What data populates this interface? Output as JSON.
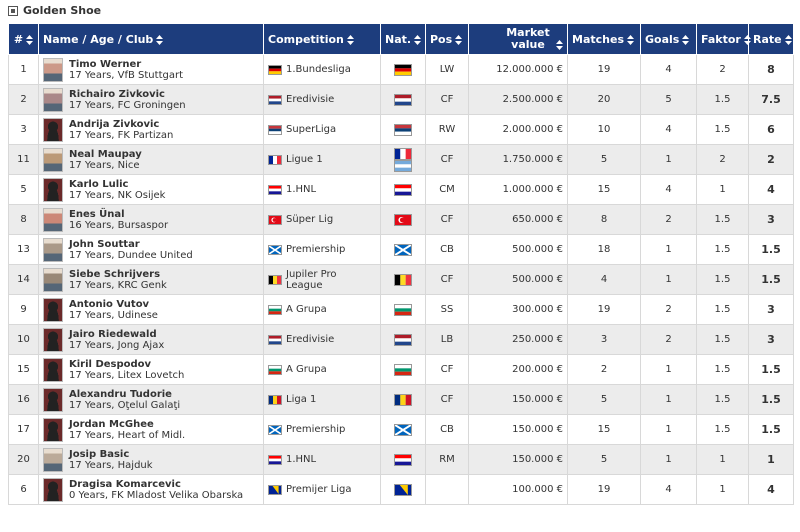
{
  "title": "Golden Shoe",
  "table": {
    "headers": [
      "#",
      "Name / Age / Club",
      "Competition",
      "Nat.",
      "Pos",
      "Market value",
      "Matches",
      "Goals",
      "Faktor",
      "Rate"
    ],
    "rows": [
      {
        "number": "1",
        "name": "Timo Werner",
        "details": "17 Years, VfB Stuttgart",
        "competition": "1.Bundesliga",
        "pos": "LW",
        "market_value": "12.000.000 €",
        "matches": "19",
        "goals": "4",
        "faktor": "2",
        "rate": "8"
      },
      {
        "number": "2",
        "name": "Richairo Zivkovic",
        "details": "17 Years, FC Groningen",
        "competition": "Eredivisie",
        "pos": "CF",
        "market_value": "2.500.000 €",
        "matches": "20",
        "goals": "5",
        "faktor": "1.5",
        "rate": "7.5"
      },
      {
        "number": "3",
        "name": "Andrija Zivkovic",
        "details": "17 Years, FK Partizan",
        "competition": "SuperLiga",
        "pos": "RW",
        "market_value": "2.000.000 €",
        "matches": "10",
        "goals": "4",
        "faktor": "1.5",
        "rate": "6"
      },
      {
        "number": "11",
        "name": "Neal Maupay",
        "details": "17 Years, Nice",
        "competition": "Ligue 1",
        "pos": "CF",
        "market_value": "1.750.000 €",
        "matches": "5",
        "goals": "1",
        "faktor": "2",
        "rate": "2"
      },
      {
        "number": "5",
        "name": "Karlo Lulic",
        "details": "17 Years, NK Osijek",
        "competition": "1.HNL",
        "pos": "CM",
        "market_value": "1.000.000 €",
        "matches": "15",
        "goals": "4",
        "faktor": "1",
        "rate": "4"
      },
      {
        "number": "8",
        "name": "Enes Ünal",
        "details": "16 Years, Bursaspor",
        "competition": "Süper Lig",
        "pos": "CF",
        "market_value": "650.000 €",
        "matches": "8",
        "goals": "2",
        "faktor": "1.5",
        "rate": "3"
      },
      {
        "number": "13",
        "name": "John Souttar",
        "details": "17 Years, Dundee United",
        "competition": "Premiership",
        "pos": "CB",
        "market_value": "500.000 €",
        "matches": "18",
        "goals": "1",
        "faktor": "1.5",
        "rate": "1.5"
      },
      {
        "number": "14",
        "name": "Siebe Schrijvers",
        "details": "17 Years, KRC Genk",
        "competition": "Jupiler Pro League",
        "pos": "CF",
        "market_value": "500.000 €",
        "matches": "4",
        "goals": "1",
        "faktor": "1.5",
        "rate": "1.5"
      },
      {
        "number": "9",
        "name": "Antonio Vutov",
        "details": "17 Years, Udinese",
        "competition": "A Grupa",
        "pos": "SS",
        "market_value": "300.000 €",
        "matches": "19",
        "goals": "2",
        "faktor": "1.5",
        "rate": "3"
      },
      {
        "number": "10",
        "name": "Jairo Riedewald",
        "details": "17 Years, Jong Ajax",
        "competition": "Eredivisie",
        "pos": "LB",
        "market_value": "250.000 €",
        "matches": "3",
        "goals": "2",
        "faktor": "1.5",
        "rate": "3"
      },
      {
        "number": "15",
        "name": "Kiril Despodov",
        "details": "17 Years, Litex Lovetch",
        "competition": "A Grupa",
        "pos": "CF",
        "market_value": "200.000 €",
        "matches": "2",
        "goals": "1",
        "faktor": "1.5",
        "rate": "1.5"
      },
      {
        "number": "16",
        "name": "Alexandru Tudorie",
        "details": "17 Years, Oţelul Galaţi",
        "competition": "Liga 1",
        "pos": "CF",
        "market_value": "150.000 €",
        "matches": "5",
        "goals": "1",
        "faktor": "1.5",
        "rate": "1.5"
      },
      {
        "number": "17",
        "name": "Jordan McGhee",
        "details": "17 Years, Heart of Midl.",
        "competition": "Premiership",
        "pos": "CB",
        "market_value": "150.000 €",
        "matches": "15",
        "goals": "1",
        "faktor": "1.5",
        "rate": "1.5"
      },
      {
        "number": "20",
        "name": "Josip Basic",
        "details": "17 Years, Hajduk",
        "competition": "1.HNL",
        "pos": "RM",
        "market_value": "150.000 €",
        "matches": "5",
        "goals": "1",
        "faktor": "1",
        "rate": "1"
      },
      {
        "number": "6",
        "name": "Dragisa Komarcevic",
        "details": "0 Years, FK Mladost Velika Obarska",
        "competition": "Premijer Liga",
        "pos": null,
        "market_value": "100.000 €",
        "matches": "19",
        "goals": "4",
        "faktor": "1",
        "rate": "4"
      }
    ]
  }
}
